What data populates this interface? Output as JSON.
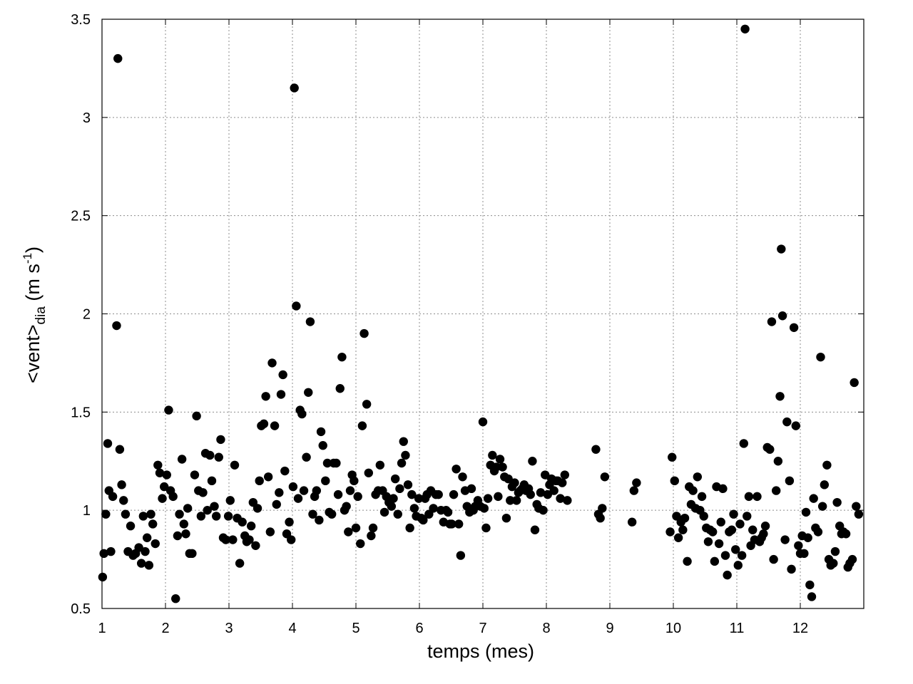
{
  "chart_data": {
    "type": "scatter",
    "title": "",
    "xlabel": "temps (mes)",
    "ylabel": {
      "main": "<vent>",
      "subscript": "dia",
      "unit_prefix": "(m s",
      "superscript": "-1",
      "unit_suffix": ")"
    },
    "xlim": [
      1,
      13
    ],
    "ylim": [
      0.5,
      3.5
    ],
    "x_ticks": [
      1,
      2,
      3,
      4,
      5,
      6,
      7,
      8,
      9,
      10,
      11,
      12
    ],
    "x_tick_labels": [
      "1",
      "2",
      "3",
      "4",
      "5",
      "6",
      "7",
      "8",
      "9",
      "10",
      "11",
      "12"
    ],
    "y_ticks": [
      0.5,
      1,
      1.5,
      2,
      2.5,
      3,
      3.5
    ],
    "y_tick_labels": [
      "0.5",
      "1",
      "1.5",
      "2",
      "2.5",
      "3",
      "3.5"
    ],
    "grid": true,
    "grid_style": "dotted",
    "legend": "none",
    "marker_color": "#000000",
    "points": [
      [
        1.01,
        0.66
      ],
      [
        1.03,
        0.78
      ],
      [
        1.06,
        0.98
      ],
      [
        1.09,
        1.34
      ],
      [
        1.11,
        1.1
      ],
      [
        1.14,
        0.79
      ],
      [
        1.17,
        1.07
      ],
      [
        1.23,
        1.94
      ],
      [
        1.25,
        3.3
      ],
      [
        1.28,
        1.31
      ],
      [
        1.31,
        1.13
      ],
      [
        1.34,
        1.05
      ],
      [
        1.37,
        0.98
      ],
      [
        1.41,
        0.79
      ],
      [
        1.45,
        0.92
      ],
      [
        1.49,
        0.77
      ],
      [
        1.53,
        0.78
      ],
      [
        1.58,
        0.81
      ],
      [
        1.62,
        0.73
      ],
      [
        1.65,
        0.97
      ],
      [
        1.68,
        0.79
      ],
      [
        1.71,
        0.86
      ],
      [
        1.74,
        0.72
      ],
      [
        1.77,
        0.98
      ],
      [
        1.8,
        0.93
      ],
      [
        1.84,
        0.83
      ],
      [
        1.88,
        1.23
      ],
      [
        1.91,
        1.19
      ],
      [
        1.95,
        1.06
      ],
      [
        1.98,
        1.12
      ],
      [
        2.02,
        1.18
      ],
      [
        2.05,
        1.51
      ],
      [
        2.08,
        1.1
      ],
      [
        2.12,
        1.07
      ],
      [
        2.16,
        0.55
      ],
      [
        2.19,
        0.87
      ],
      [
        2.22,
        0.98
      ],
      [
        2.26,
        1.26
      ],
      [
        2.29,
        0.93
      ],
      [
        2.32,
        0.88
      ],
      [
        2.35,
        1.01
      ],
      [
        2.38,
        0.78
      ],
      [
        2.42,
        0.78
      ],
      [
        2.46,
        1.18
      ],
      [
        2.49,
        1.48
      ],
      [
        2.52,
        1.1
      ],
      [
        2.56,
        0.97
      ],
      [
        2.59,
        1.09
      ],
      [
        2.63,
        1.29
      ],
      [
        2.66,
        1.0
      ],
      [
        2.7,
        1.28
      ],
      [
        2.73,
        1.15
      ],
      [
        2.77,
        1.02
      ],
      [
        2.8,
        0.97
      ],
      [
        2.84,
        1.27
      ],
      [
        2.87,
        1.36
      ],
      [
        2.91,
        0.86
      ],
      [
        2.95,
        0.85
      ],
      [
        2.99,
        0.97
      ],
      [
        3.02,
        1.05
      ],
      [
        3.06,
        0.85
      ],
      [
        3.09,
        1.23
      ],
      [
        3.13,
        0.96
      ],
      [
        3.17,
        0.73
      ],
      [
        3.21,
        0.94
      ],
      [
        3.25,
        0.87
      ],
      [
        3.28,
        0.84
      ],
      [
        3.32,
        0.85
      ],
      [
        3.35,
        0.92
      ],
      [
        3.38,
        1.04
      ],
      [
        3.42,
        0.82
      ],
      [
        3.45,
        1.01
      ],
      [
        3.48,
        1.15
      ],
      [
        3.51,
        1.43
      ],
      [
        3.55,
        1.44
      ],
      [
        3.58,
        1.58
      ],
      [
        3.62,
        1.17
      ],
      [
        3.65,
        0.89
      ],
      [
        3.68,
        1.75
      ],
      [
        3.72,
        1.43
      ],
      [
        3.75,
        1.03
      ],
      [
        3.79,
        1.09
      ],
      [
        3.82,
        1.59
      ],
      [
        3.85,
        1.69
      ],
      [
        3.88,
        1.2
      ],
      [
        3.91,
        0.88
      ],
      [
        3.95,
        0.94
      ],
      [
        3.98,
        0.85
      ],
      [
        4.01,
        1.12
      ],
      [
        4.03,
        3.15
      ],
      [
        4.06,
        2.04
      ],
      [
        4.09,
        1.06
      ],
      [
        4.12,
        1.51
      ],
      [
        4.15,
        1.49
      ],
      [
        4.18,
        1.1
      ],
      [
        4.22,
        1.27
      ],
      [
        4.25,
        1.6
      ],
      [
        4.28,
        1.96
      ],
      [
        4.32,
        0.98
      ],
      [
        4.35,
        1.07
      ],
      [
        4.38,
        1.1
      ],
      [
        4.42,
        0.95
      ],
      [
        4.45,
        1.4
      ],
      [
        4.48,
        1.33
      ],
      [
        4.52,
        1.15
      ],
      [
        4.55,
        1.24
      ],
      [
        4.58,
        0.99
      ],
      [
        4.62,
        0.98
      ],
      [
        4.65,
        1.24
      ],
      [
        4.69,
        1.24
      ],
      [
        4.72,
        1.08
      ],
      [
        4.75,
        1.62
      ],
      [
        4.78,
        1.78
      ],
      [
        4.82,
        1.0
      ],
      [
        4.85,
        1.02
      ],
      [
        4.88,
        0.89
      ],
      [
        4.91,
        1.1
      ],
      [
        4.94,
        1.18
      ],
      [
        4.97,
        1.15
      ],
      [
        5.0,
        0.91
      ],
      [
        5.03,
        1.07
      ],
      [
        5.07,
        0.83
      ],
      [
        5.1,
        1.43
      ],
      [
        5.13,
        1.9
      ],
      [
        5.17,
        1.54
      ],
      [
        5.2,
        1.19
      ],
      [
        5.24,
        0.87
      ],
      [
        5.27,
        0.91
      ],
      [
        5.31,
        1.08
      ],
      [
        5.35,
        1.1
      ],
      [
        5.38,
        1.23
      ],
      [
        5.42,
        1.1
      ],
      [
        5.45,
        0.99
      ],
      [
        5.48,
        1.07
      ],
      [
        5.52,
        1.04
      ],
      [
        5.56,
        1.02
      ],
      [
        5.59,
        1.06
      ],
      [
        5.62,
        1.16
      ],
      [
        5.66,
        0.98
      ],
      [
        5.69,
        1.11
      ],
      [
        5.72,
        1.24
      ],
      [
        5.75,
        1.35
      ],
      [
        5.78,
        1.28
      ],
      [
        5.82,
        1.13
      ],
      [
        5.85,
        0.91
      ],
      [
        5.88,
        1.08
      ],
      [
        5.92,
        1.01
      ],
      [
        5.95,
        0.97
      ],
      [
        5.99,
        1.06
      ],
      [
        6.03,
        0.96
      ],
      [
        6.06,
        0.95
      ],
      [
        6.09,
        1.06
      ],
      [
        6.12,
        1.08
      ],
      [
        6.15,
        0.98
      ],
      [
        6.18,
        1.1
      ],
      [
        6.22,
        1.01
      ],
      [
        6.26,
        1.08
      ],
      [
        6.3,
        1.08
      ],
      [
        6.34,
        1.0
      ],
      [
        6.38,
        0.94
      ],
      [
        6.42,
        1.0
      ],
      [
        6.45,
        0.99
      ],
      [
        6.48,
        0.93
      ],
      [
        6.51,
        0.93
      ],
      [
        6.54,
        1.08
      ],
      [
        6.58,
        1.21
      ],
      [
        6.62,
        0.93
      ],
      [
        6.65,
        0.77
      ],
      [
        6.68,
        1.17
      ],
      [
        6.72,
        1.1
      ],
      [
        6.75,
        1.02
      ],
      [
        6.79,
        0.99
      ],
      [
        6.82,
        1.11
      ],
      [
        6.85,
        1.0
      ],
      [
        6.88,
        1.02
      ],
      [
        6.92,
        1.05
      ],
      [
        6.96,
        1.02
      ],
      [
        7.0,
        1.45
      ],
      [
        7.02,
        1.01
      ],
      [
        7.05,
        0.91
      ],
      [
        7.08,
        1.06
      ],
      [
        7.12,
        1.23
      ],
      [
        7.15,
        1.28
      ],
      [
        7.18,
        1.2
      ],
      [
        7.21,
        1.22
      ],
      [
        7.24,
        1.07
      ],
      [
        7.27,
        1.26
      ],
      [
        7.31,
        1.22
      ],
      [
        7.34,
        1.17
      ],
      [
        7.37,
        0.96
      ],
      [
        7.4,
        1.16
      ],
      [
        7.43,
        1.05
      ],
      [
        7.46,
        1.12
      ],
      [
        7.5,
        1.14
      ],
      [
        7.53,
        1.05
      ],
      [
        7.56,
        1.09
      ],
      [
        7.59,
        1.1
      ],
      [
        7.62,
        1.11
      ],
      [
        7.65,
        1.13
      ],
      [
        7.68,
        1.1
      ],
      [
        7.72,
        1.11
      ],
      [
        7.75,
        1.08
      ],
      [
        7.78,
        1.25
      ],
      [
        7.82,
        0.9
      ],
      [
        7.85,
        1.03
      ],
      [
        7.88,
        1.01
      ],
      [
        7.91,
        1.09
      ],
      [
        7.95,
        1.0
      ],
      [
        7.98,
        1.18
      ],
      [
        8.02,
        1.08
      ],
      [
        8.05,
        1.13
      ],
      [
        8.08,
        1.16
      ],
      [
        8.12,
        1.1
      ],
      [
        8.15,
        1.15
      ],
      [
        8.18,
        1.15
      ],
      [
        8.22,
        1.06
      ],
      [
        8.25,
        1.14
      ],
      [
        8.29,
        1.18
      ],
      [
        8.33,
        1.05
      ],
      [
        8.78,
        1.31
      ],
      [
        8.82,
        0.98
      ],
      [
        8.85,
        0.96
      ],
      [
        8.88,
        1.01
      ],
      [
        8.92,
        1.17
      ],
      [
        9.35,
        0.94
      ],
      [
        9.38,
        1.1
      ],
      [
        9.42,
        1.14
      ],
      [
        9.95,
        0.89
      ],
      [
        9.98,
        1.27
      ],
      [
        10.02,
        1.15
      ],
      [
        10.05,
        0.97
      ],
      [
        10.08,
        0.86
      ],
      [
        10.12,
        0.94
      ],
      [
        10.15,
        0.9
      ],
      [
        10.18,
        0.96
      ],
      [
        10.22,
        0.74
      ],
      [
        10.25,
        1.12
      ],
      [
        10.28,
        1.03
      ],
      [
        10.31,
        1.1
      ],
      [
        10.35,
        1.01
      ],
      [
        10.38,
        1.17
      ],
      [
        10.42,
        1.0
      ],
      [
        10.45,
        1.07
      ],
      [
        10.48,
        0.97
      ],
      [
        10.52,
        0.91
      ],
      [
        10.55,
        0.84
      ],
      [
        10.58,
        0.9
      ],
      [
        10.62,
        0.89
      ],
      [
        10.65,
        0.74
      ],
      [
        10.68,
        1.12
      ],
      [
        10.72,
        0.83
      ],
      [
        10.75,
        0.94
      ],
      [
        10.78,
        1.11
      ],
      [
        10.82,
        0.77
      ],
      [
        10.85,
        0.67
      ],
      [
        10.88,
        0.89
      ],
      [
        10.92,
        0.9
      ],
      [
        10.95,
        0.98
      ],
      [
        10.98,
        0.8
      ],
      [
        11.02,
        0.72
      ],
      [
        11.05,
        0.93
      ],
      [
        11.08,
        0.77
      ],
      [
        11.11,
        1.34
      ],
      [
        11.13,
        3.45
      ],
      [
        11.16,
        0.97
      ],
      [
        11.19,
        1.07
      ],
      [
        11.22,
        0.82
      ],
      [
        11.25,
        0.9
      ],
      [
        11.28,
        0.85
      ],
      [
        11.32,
        1.07
      ],
      [
        11.36,
        0.84
      ],
      [
        11.39,
        0.86
      ],
      [
        11.42,
        0.88
      ],
      [
        11.45,
        0.92
      ],
      [
        11.48,
        1.32
      ],
      [
        11.52,
        1.31
      ],
      [
        11.55,
        1.96
      ],
      [
        11.58,
        0.75
      ],
      [
        11.62,
        1.1
      ],
      [
        11.65,
        1.25
      ],
      [
        11.68,
        1.58
      ],
      [
        11.7,
        2.33
      ],
      [
        11.72,
        1.99
      ],
      [
        11.76,
        0.85
      ],
      [
        11.79,
        1.45
      ],
      [
        11.83,
        1.15
      ],
      [
        11.86,
        0.7
      ],
      [
        11.9,
        1.93
      ],
      [
        11.93,
        1.43
      ],
      [
        11.97,
        0.82
      ],
      [
        12.0,
        0.78
      ],
      [
        12.03,
        0.87
      ],
      [
        12.06,
        0.78
      ],
      [
        12.09,
        0.99
      ],
      [
        12.12,
        0.86
      ],
      [
        12.15,
        0.62
      ],
      [
        12.18,
        0.56
      ],
      [
        12.21,
        1.06
      ],
      [
        12.24,
        0.91
      ],
      [
        12.28,
        0.89
      ],
      [
        12.32,
        1.78
      ],
      [
        12.35,
        1.02
      ],
      [
        12.38,
        1.13
      ],
      [
        12.42,
        1.23
      ],
      [
        12.45,
        0.75
      ],
      [
        12.48,
        0.72
      ],
      [
        12.52,
        0.73
      ],
      [
        12.55,
        0.79
      ],
      [
        12.58,
        1.04
      ],
      [
        12.62,
        0.92
      ],
      [
        12.65,
        0.88
      ],
      [
        12.68,
        0.89
      ],
      [
        12.72,
        0.88
      ],
      [
        12.75,
        0.71
      ],
      [
        12.78,
        0.73
      ],
      [
        12.82,
        0.75
      ],
      [
        12.85,
        1.65
      ],
      [
        12.88,
        1.02
      ],
      [
        12.92,
        0.98
      ]
    ]
  }
}
